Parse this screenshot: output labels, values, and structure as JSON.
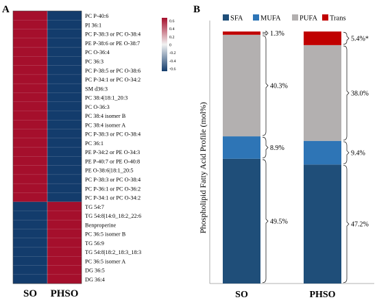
{
  "panel_a": {
    "label": "A",
    "rows": [
      "PC P-40:6",
      "PI 36:1",
      "PC P-38:3 or PC O-38:4",
      "PE P-38:6 or PE O-38:7",
      "PC O-36:4",
      "PC 36:3",
      "PC P-38:5 or PC O-38:6",
      "PC P-34:1 or PC O-34:2",
      "SM d36:3",
      "PC 38:4|18:1_20:3",
      "PC O-36:3",
      "PC 38:4 isomer B",
      "PC 38:4 isomer A",
      "PC P-38:3 or PC O-38:4",
      "PC 36:1",
      "PE P-34:2 or PE O-34:3",
      "PE P-40:7 or PE O-40:8",
      "PE O-38:6|18:1_20:5",
      "PC P-38:3 or PC O-38:4",
      "PC P-36:1 or PC O-36:2",
      "PC P-34:1 or PC O-34:2",
      "TG 54:7",
      "TG 54:8|14:0_18:2_22:6",
      "Benproperine",
      "PC 36:5 isomer B",
      "TG 56:9",
      "TG 54:8|18:2_18:3_18:3",
      "PC 36:5 isomer A",
      "DG 36:5",
      "DG 36:4"
    ],
    "columns": [
      "SO",
      "PHSO"
    ],
    "values": [
      [
        0.6,
        -0.6
      ],
      [
        0.6,
        -0.6
      ],
      [
        0.6,
        -0.6
      ],
      [
        0.6,
        -0.6
      ],
      [
        0.6,
        -0.6
      ],
      [
        0.6,
        -0.6
      ],
      [
        0.6,
        -0.6
      ],
      [
        0.6,
        -0.6
      ],
      [
        0.6,
        -0.6
      ],
      [
        0.6,
        -0.6
      ],
      [
        0.6,
        -0.6
      ],
      [
        0.6,
        -0.6
      ],
      [
        0.6,
        -0.6
      ],
      [
        0.6,
        -0.6
      ],
      [
        0.6,
        -0.6
      ],
      [
        0.6,
        -0.6
      ],
      [
        0.6,
        -0.6
      ],
      [
        0.6,
        -0.6
      ],
      [
        0.6,
        -0.6
      ],
      [
        0.6,
        -0.6
      ],
      [
        0.6,
        -0.6
      ],
      [
        -0.6,
        0.6
      ],
      [
        -0.6,
        0.6
      ],
      [
        -0.6,
        0.6
      ],
      [
        -0.6,
        0.6
      ],
      [
        -0.6,
        0.6
      ],
      [
        -0.6,
        0.6
      ],
      [
        -0.6,
        0.6
      ],
      [
        -0.6,
        0.6
      ],
      [
        -0.6,
        0.6
      ]
    ],
    "scale": {
      "ticks": [
        "0.6",
        "0.4",
        "0.2",
        "0",
        "-0.2",
        "-0.4",
        "-0.6"
      ],
      "high_color": "#a50f2c",
      "mid_color": "#f2f2f2",
      "low_color": "#133c6c"
    }
  },
  "chart_data": [
    {
      "type": "heatmap",
      "rows": "see panel_a.rows",
      "columns": [
        "SO",
        "PHSO"
      ],
      "range": [
        -0.6,
        0.6
      ]
    },
    {
      "type": "bar",
      "stacked": true,
      "categories": [
        "SO",
        "PHSO"
      ],
      "series": [
        {
          "name": "SFA",
          "values": [
            49.5,
            47.2
          ],
          "color": "#1f4e79"
        },
        {
          "name": "MUFA",
          "values": [
            8.9,
            9.4
          ],
          "color": "#2e75b6"
        },
        {
          "name": "PUFA",
          "values": [
            40.3,
            38.0
          ],
          "color": "#b3b0b0"
        },
        {
          "name": "Trans",
          "values": [
            1.3,
            5.4
          ],
          "color": "#c00000"
        }
      ],
      "value_labels": [
        [
          "49.5%",
          "8.9%",
          "40.3%",
          "1.3%"
        ],
        [
          "47.2%",
          "9.4%",
          "38.0%",
          "5.4%*"
        ]
      ],
      "ylabel": "Phospholipid Fatty Acid Profile (mol%)",
      "ylim": [
        0,
        100
      ],
      "legend": "top",
      "grid": false
    }
  ],
  "panel_b": {
    "label": "B"
  }
}
